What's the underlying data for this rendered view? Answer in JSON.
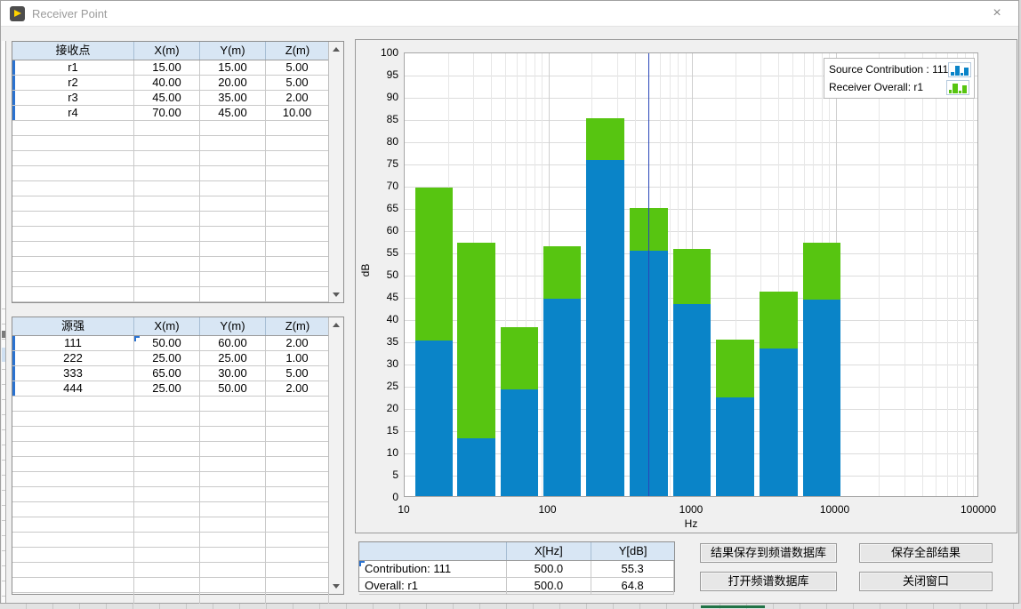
{
  "window": {
    "title": "Receiver Point",
    "close_glyph": "×"
  },
  "receiver_table": {
    "headers": [
      "接收点",
      "X(m)",
      "Y(m)",
      "Z(m)"
    ],
    "rows": [
      [
        "r1",
        "15.00",
        "15.00",
        "5.00"
      ],
      [
        "r2",
        "40.00",
        "20.00",
        "5.00"
      ],
      [
        "r3",
        "45.00",
        "35.00",
        "2.00"
      ],
      [
        "r4",
        "70.00",
        "45.00",
        "10.00"
      ]
    ]
  },
  "source_table": {
    "headers": [
      "源强",
      "X(m)",
      "Y(m)",
      "Z(m)"
    ],
    "rows": [
      [
        "111",
        "50.00",
        "60.00",
        "2.00"
      ],
      [
        "222",
        "25.00",
        "25.00",
        "1.00"
      ],
      [
        "333",
        "65.00",
        "30.00",
        "5.00"
      ],
      [
        "444",
        "25.00",
        "50.00",
        "2.00"
      ]
    ]
  },
  "chart_data": {
    "type": "bar",
    "stacked": true,
    "x_scale": "log",
    "xlabel": "Hz",
    "ylabel": "dB",
    "xlim": [
      10,
      100000
    ],
    "ylim": [
      0,
      100
    ],
    "ytick_step": 5,
    "xticks": [
      "10",
      "100",
      "1000",
      "10000",
      "100000"
    ],
    "band_centers_hz": [
      16,
      31.5,
      63,
      125,
      250,
      500,
      1000,
      2000,
      4000,
      8000
    ],
    "series": [
      {
        "name": "Source Contribution : 111",
        "color": "#0a84c8",
        "values": [
          35.0,
          13.0,
          24.0,
          44.5,
          75.7,
          55.3,
          43.2,
          22.2,
          33.2,
          44.2
        ]
      },
      {
        "name": "Receiver Overall: r1",
        "color": "#57c511",
        "values": [
          69.5,
          57.0,
          38.0,
          56.3,
          85.0,
          64.8,
          55.7,
          35.2,
          46.1,
          57.1
        ]
      }
    ],
    "legend_position": "top-right",
    "grid": true,
    "cursor": {
      "x_hz": 500,
      "contribution_db": 55.3,
      "overall_db": 64.8,
      "color": "#2845b8"
    }
  },
  "cursor_table": {
    "headers": [
      "",
      "X[Hz]",
      "Y[dB]"
    ],
    "rows": [
      [
        "Contribution: 111",
        "500.0",
        "55.3"
      ],
      [
        "Overall: r1",
        "500.0",
        "64.8"
      ]
    ]
  },
  "buttons": {
    "save_to_db": "结果保存到频谱数据库",
    "save_all": "保存全部结果",
    "open_db": "打开频谱数据库",
    "close_window": "关闭窗口"
  }
}
